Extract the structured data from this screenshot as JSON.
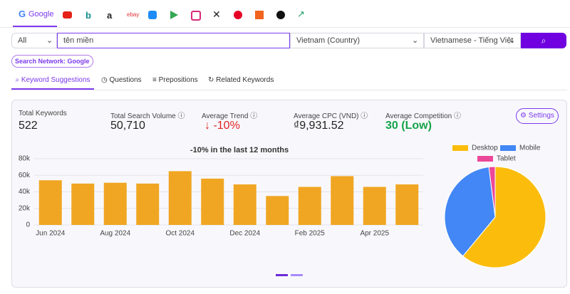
{
  "tabs": [
    "Google"
  ],
  "search": {
    "scope": "All",
    "query": "tên miền",
    "country": "Vietnam (Country)",
    "language": "Vietnamese - Tiếng Việt",
    "network": "Search Network: Google"
  },
  "subtabs": [
    "Keyword Suggestions",
    "Questions",
    "Prepositions",
    "Related Keywords"
  ],
  "stats": [
    {
      "label": "Total Keywords",
      "value": "522"
    },
    {
      "label": "Total Search Volume",
      "value": "50,710"
    },
    {
      "label": "Average Trend",
      "value": "↓ -10%"
    },
    {
      "label": "Average CPC (VND)",
      "value": "₫9,931.52"
    },
    {
      "label": "Average Competition",
      "value": "30 (Low)"
    }
  ],
  "settings_button": "Settings",
  "chart_data": [
    {
      "type": "bar",
      "title": "-10% in the last 12 months",
      "categories": [
        "Jun 2024",
        null,
        "Aug 2024",
        null,
        "Oct 2024",
        null,
        "Dec 2024",
        null,
        "Feb 2025",
        null,
        "Apr 2025",
        null
      ],
      "values": [
        54000,
        50000,
        51000,
        50000,
        65000,
        56000,
        49000,
        35000,
        46000,
        59000,
        46000,
        49000
      ],
      "color": "#f0a623",
      "ylim": [
        0,
        80000
      ],
      "yticks": [
        0,
        {
          "value": 20000,
          "label": "20k"
        },
        {
          "value": 40000,
          "label": "40k"
        },
        {
          "value": 60000,
          "label": "60k"
        },
        {
          "value": 80000,
          "label": "80k"
        }
      ],
      "grid": true
    },
    {
      "type": "pie",
      "categories": [
        "Desktop",
        "Mobile",
        "Tablet"
      ],
      "values": [
        61,
        37,
        2
      ],
      "colors": [
        "#fbbc0c",
        "#4287f5",
        "#ec4899"
      ],
      "legend": "top"
    }
  ]
}
